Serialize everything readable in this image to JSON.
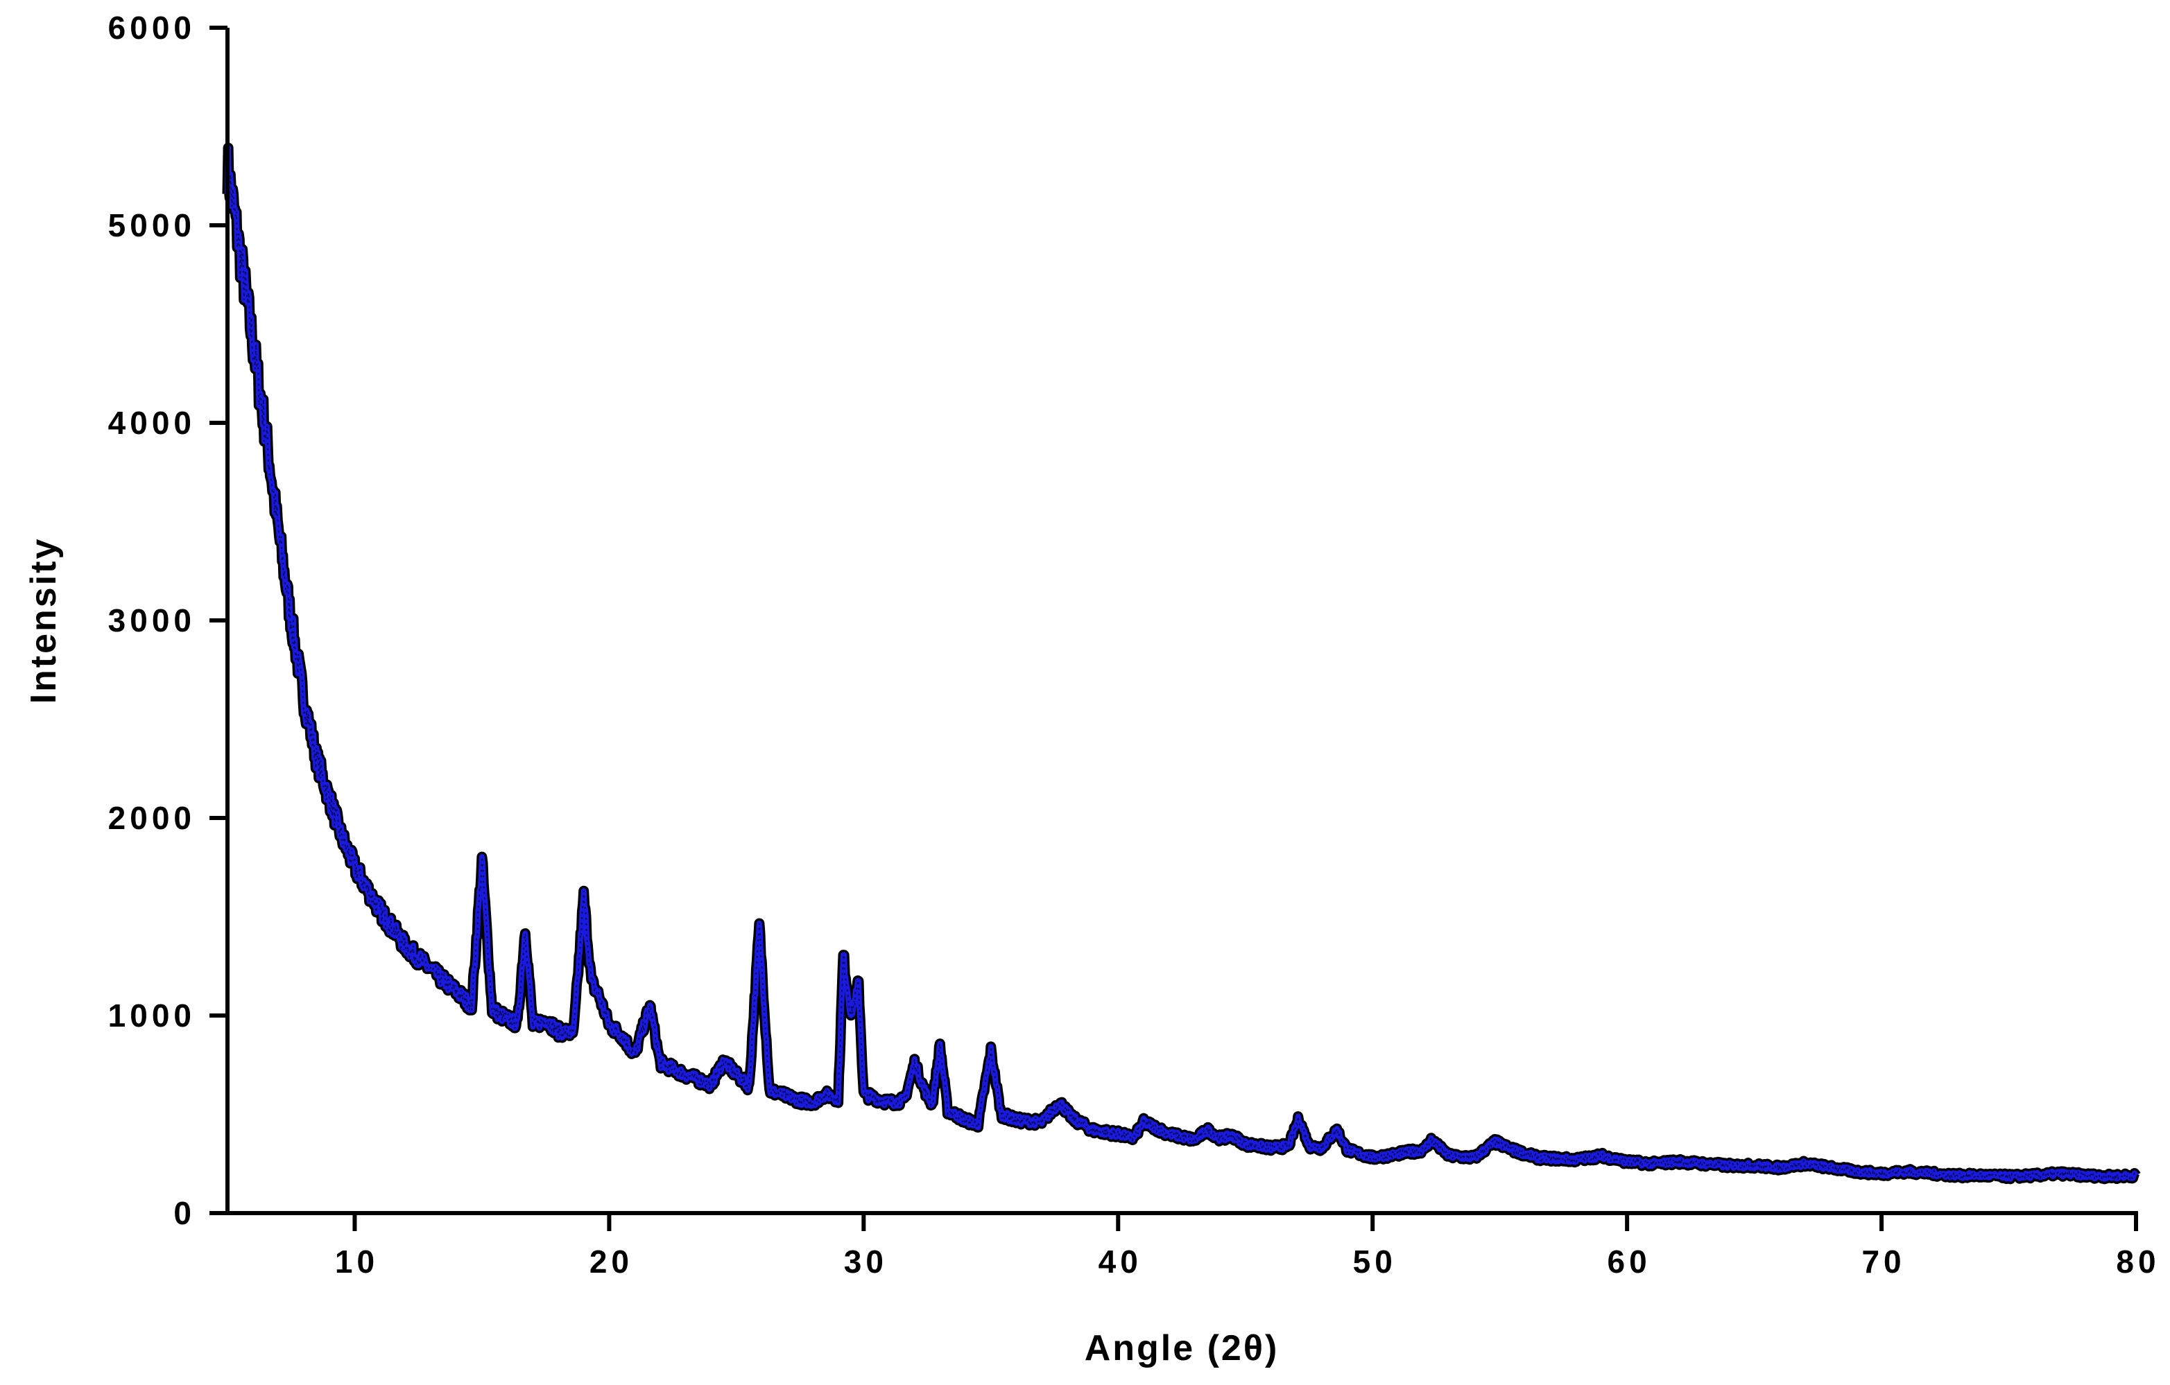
{
  "chart_data": {
    "type": "line",
    "xlabel": "Angle (2θ)",
    "ylabel": "Intensity",
    "xlim": [
      5,
      80
    ],
    "ylim": [
      0,
      6000
    ],
    "x_ticks": [
      10,
      20,
      30,
      40,
      50,
      60,
      70,
      80
    ],
    "x_tick_labels": [
      "10",
      "20",
      "30",
      "40",
      "50",
      "60",
      "70",
      "80"
    ],
    "y_ticks": [
      0,
      1000,
      2000,
      3000,
      4000,
      5000,
      6000
    ],
    "y_tick_labels": [
      "0",
      "1000",
      "2000",
      "3000",
      "4000",
      "5000",
      "6000"
    ],
    "grid": false,
    "legend": "none",
    "colors": {
      "line": "#1a1adf",
      "edge": "#000000",
      "axis": "#000000"
    },
    "series": [
      {
        "x": [
          5.0,
          5.5,
          6.0,
          6.5,
          7.0,
          7.5,
          8.0,
          8.5,
          9.0,
          9.5,
          10.0,
          11.0,
          12.0,
          13.0,
          14.0,
          14.6,
          15.0,
          15.4,
          16.0,
          16.4,
          16.7,
          17.0,
          17.5,
          18.0,
          18.6,
          19.0,
          19.3,
          19.6,
          20.0,
          20.5,
          21.0,
          21.6,
          22.0,
          23.0,
          24.0,
          24.5,
          25.0,
          25.5,
          25.9,
          26.3,
          27.0,
          27.5,
          28.0,
          28.5,
          29.0,
          29.2,
          29.5,
          29.8,
          30.0,
          31.0,
          31.6,
          32.0,
          32.4,
          32.7,
          33.0,
          33.3,
          34.0,
          34.5,
          35.0,
          35.4,
          36.0,
          37.0,
          37.7,
          38.2,
          39.0,
          40.0,
          40.6,
          41.0,
          42.0,
          43.0,
          43.5,
          44.0,
          44.5,
          45.0,
          46.0,
          46.7,
          47.1,
          47.5,
          48.0,
          48.6,
          49.0,
          50.0,
          51.0,
          52.0,
          52.3,
          53.0,
          54.0,
          54.8,
          55.5,
          56.5,
          58.0,
          59.0,
          60.0,
          61.0,
          62.0,
          63.0,
          64.0,
          65.0,
          66.0,
          67.0,
          68.0,
          69.0,
          70.0,
          71.0,
          72.0,
          73.0,
          74.0,
          75.0,
          76.0,
          77.0,
          78.0,
          79.0,
          80.0
        ],
        "y": [
          5300,
          4850,
          4400,
          3950,
          3450,
          3000,
          2600,
          2300,
          2100,
          1900,
          1750,
          1530,
          1350,
          1230,
          1120,
          1050,
          1780,
          1030,
          980,
          960,
          1440,
          950,
          980,
          920,
          910,
          1600,
          1170,
          1100,
          950,
          900,
          800,
          1050,
          760,
          700,
          650,
          770,
          700,
          640,
          1450,
          620,
          590,
          570,
          560,
          600,
          580,
          1300,
          1000,
          1160,
          600,
          560,
          570,
          760,
          620,
          550,
          850,
          520,
          470,
          450,
          820,
          500,
          470,
          460,
          560,
          480,
          420,
          400,
          380,
          460,
          400,
          370,
          420,
          380,
          390,
          350,
          330,
          340,
          480,
          340,
          330,
          420,
          320,
          280,
          300,
          320,
          370,
          290,
          280,
          360,
          320,
          280,
          270,
          290,
          260,
          250,
          260,
          250,
          240,
          240,
          230,
          250,
          230,
          210,
          200,
          210,
          200,
          190,
          190,
          185,
          190,
          200,
          190,
          185,
          190
        ]
      }
    ]
  }
}
